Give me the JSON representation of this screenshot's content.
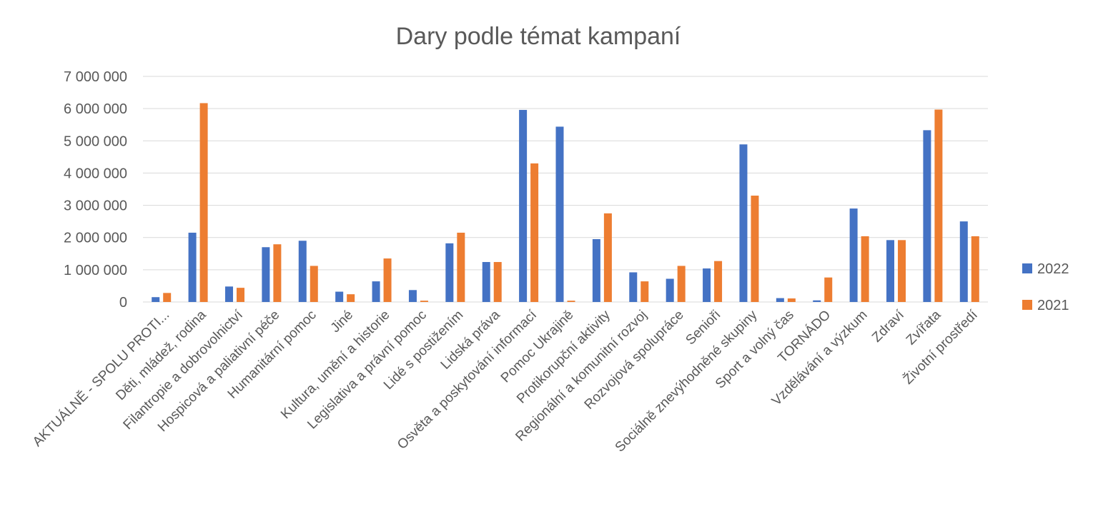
{
  "chart_data": {
    "type": "bar",
    "title": "Dary podle témat kampaní",
    "xlabel": "",
    "ylabel": "",
    "ylim": [
      0,
      7000000
    ],
    "yticks": [
      0,
      1000000,
      2000000,
      3000000,
      4000000,
      5000000,
      6000000,
      7000000
    ],
    "ytick_labels": [
      "0",
      "1 000 000",
      "2 000 000",
      "3 000 000",
      "4 000 000",
      "5 000 000",
      "6 000 000",
      "7 000 000"
    ],
    "grid": true,
    "legend": "right",
    "categories": [
      "AKTUÁLNĚ - SPOLU PROTI...",
      "Děti, mládež, rodina",
      "Filantropie a dobrovolnictví",
      "Hospicová a paliativní péče",
      "Humanitární pomoc",
      "Jiné",
      "Kultura, umění a historie",
      "Legislativa a právní pomoc",
      "Lidé s postižením",
      "Lidská práva",
      "Osvěta a poskytování informací",
      "Pomoc Ukrajině",
      "Protikorupční aktivity",
      "Regionální a komunitní rozvoj",
      "Rozvojová spolupráce",
      "Senioři",
      "Sociálně znevýhodněné skupiny",
      "Sport a volný čas",
      "TORNÁDO",
      "Vzdělávání a výzkum",
      "Zdraví",
      "Zvířata",
      "Životní prostředí"
    ],
    "series": [
      {
        "name": "2022",
        "color": "#4472c4",
        "values": [
          150000,
          2150000,
          480000,
          1700000,
          1900000,
          320000,
          640000,
          370000,
          1820000,
          1240000,
          5960000,
          5440000,
          1950000,
          920000,
          720000,
          1040000,
          4890000,
          120000,
          50000,
          2900000,
          1920000,
          5330000,
          2500000
        ]
      },
      {
        "name": "2021",
        "color": "#ed7d31",
        "values": [
          280000,
          6170000,
          440000,
          1790000,
          1120000,
          240000,
          1350000,
          40000,
          2150000,
          1240000,
          4300000,
          40000,
          2750000,
          640000,
          1120000,
          1270000,
          3300000,
          110000,
          760000,
          2040000,
          1920000,
          5970000,
          2040000
        ]
      }
    ]
  }
}
